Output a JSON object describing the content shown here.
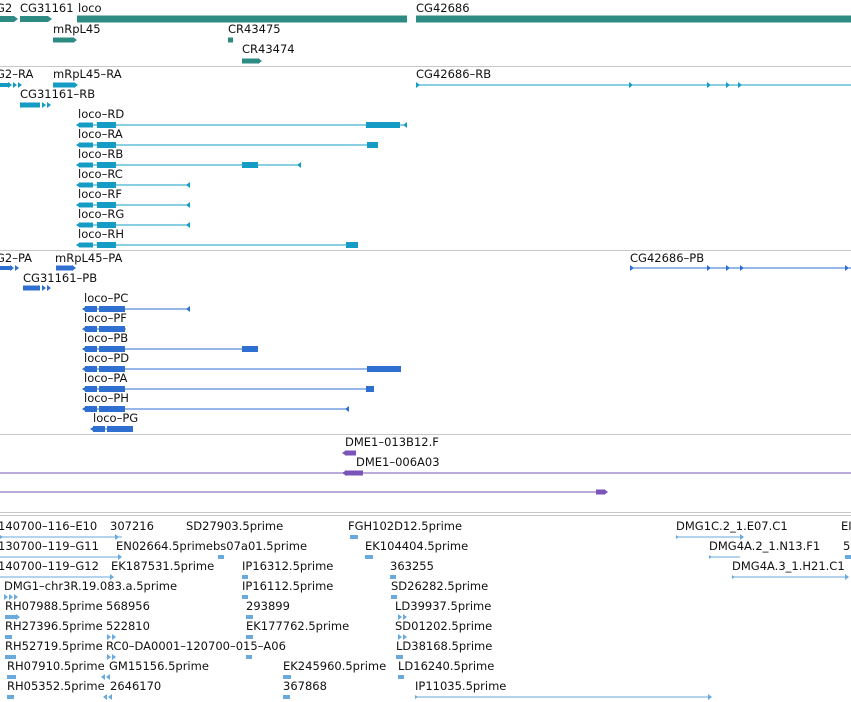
{
  "colors": {
    "gene": "#2e8b84",
    "transcript": "#149cc4",
    "protein": "#2f6fd1",
    "cdna": "#7a54b8",
    "est": "#6aa9dc",
    "separator": "#c8c8c8"
  },
  "gene_track": {
    "labels": {
      "g_cut": "G2",
      "g_cg31161": "CG31161",
      "g_loco": "loco",
      "g_cg42686": "CG42686",
      "g_mrpl45": "mRpL45",
      "g_cr43475": "CR43475",
      "g_cr43474": "CR43474"
    }
  },
  "transcript_track": {
    "labels": {
      "t_cut": "G2–RA",
      "t_mrpl45": "mRpL45–RA",
      "t_cg42686": "CG42686–RB",
      "t_cg31161": "CG31161–RB",
      "t_rd": "loco–RD",
      "t_ra": "loco–RA",
      "t_rb": "loco–RB",
      "t_rc": "loco–RC",
      "t_rf": "loco–RF",
      "t_rg": "loco–RG",
      "t_rh": "loco–RH"
    }
  },
  "protein_track": {
    "labels": {
      "p_cut": "G2–PA",
      "p_mrpl45": "mRpL45–PA",
      "p_cg42686": "CG42686–PB",
      "p_cg31161": "CG31161–PB",
      "p_pc": "loco–PC",
      "p_pf": "loco–PF",
      "p_pb": "loco–PB",
      "p_pd": "loco–PD",
      "p_pa": "loco–PA",
      "p_ph": "loco–PH",
      "p_pg": "loco–PG"
    }
  },
  "cdna_track": {
    "labels": {
      "c_013b12": "DME1–013B12.F",
      "c_006a03": "DME1–006A03"
    }
  },
  "est_track": {
    "labels": {
      "e1": "140700–116–E10",
      "e2": "307216",
      "e3": "SD27903.5prime",
      "e4": "FGH102D12.5prime",
      "e5": "DMG1C.2_1.E07.C1",
      "e6": "EI",
      "e7": "130700–119–G11",
      "e8": "EN02664.5prime",
      "e9": "bs07a01.5prime",
      "e10": "EK104404.5prime",
      "e11": "DMG4A.2_1.N13.F1",
      "e12": "5",
      "e13": "140700–119–G12",
      "e14": "EK187531.5prime",
      "e15": "IP16312.5prime",
      "e16": "363255",
      "e17": "DMG4A.3_1.H21.C1",
      "e18": "DMG1–chr3R.19.083.a.5prime",
      "e19": "IP16112.5prime",
      "e20": "SD26282.5prime",
      "e21": "RH07988.5prime",
      "e22": "568956",
      "e23": "293899",
      "e24": "LD39937.5prime",
      "e25": "RH27396.5prime",
      "e26": "522810",
      "e27": "EK177762.5prime",
      "e28": "SD01202.5prime",
      "e29": "RH52719.5prime",
      "e30": "RC0–DA0001–120700–015–A06",
      "e31": "LD38168.5prime",
      "e32": "RH07910.5prime",
      "e33": "GM15156.5prime",
      "e34": "EK245960.5prime",
      "e35": "LD16240.5prime",
      "e36": "RH05352.5prime",
      "e37": "2646170",
      "e38": "367868",
      "e39": "IP11035.5prime"
    }
  }
}
